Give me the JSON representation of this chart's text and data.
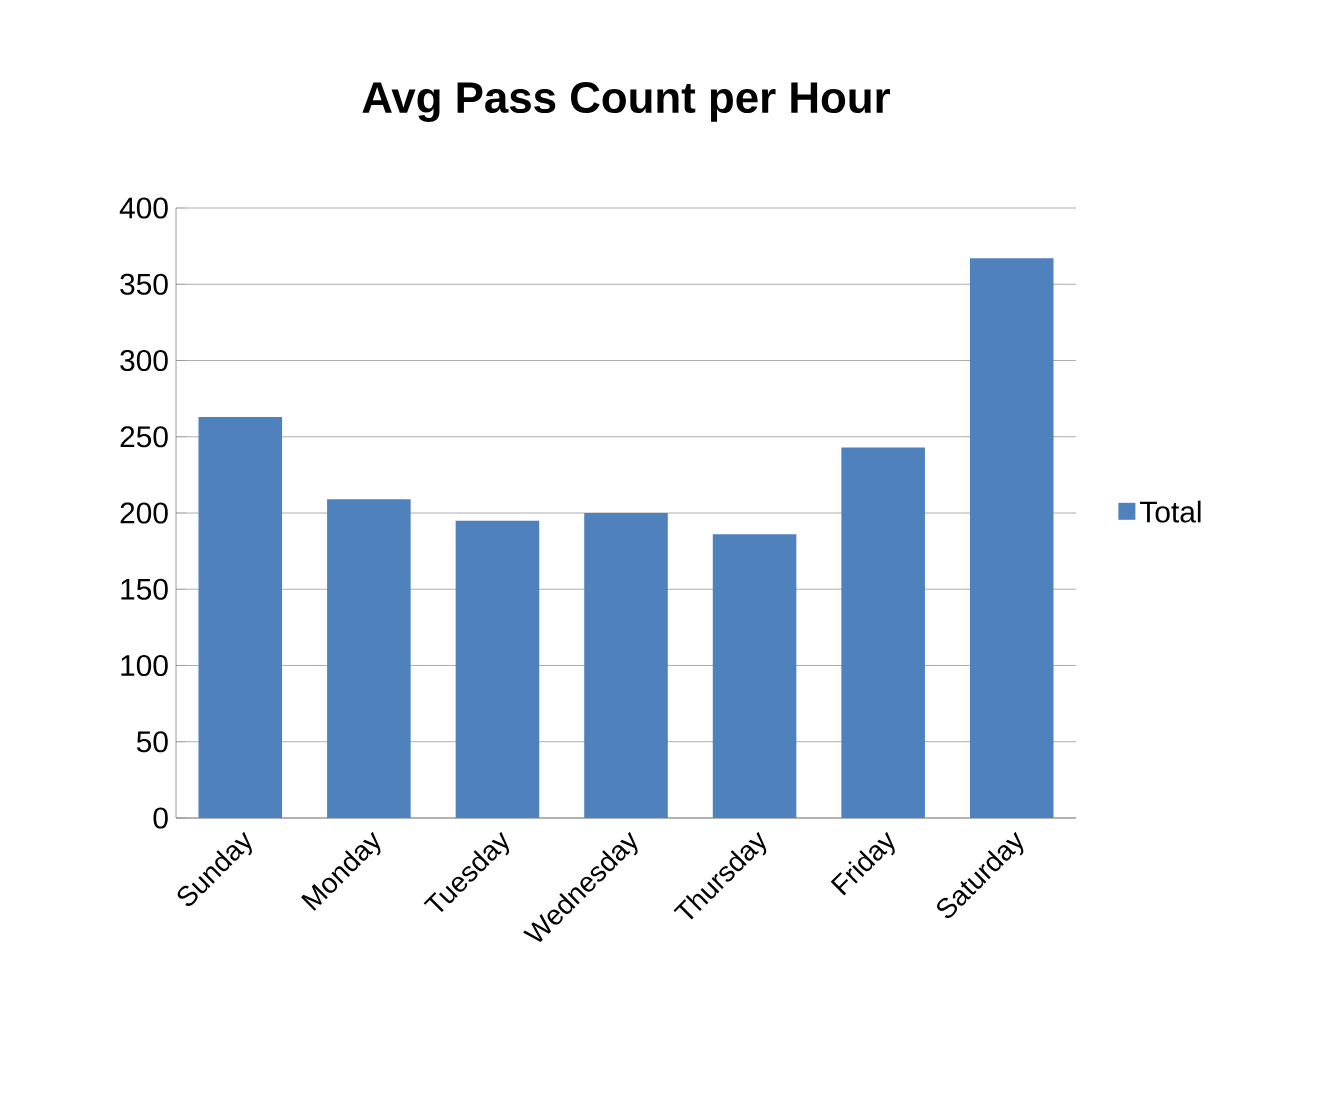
{
  "chart_data": {
    "type": "bar",
    "title": "Avg Pass Count per Hour",
    "categories": [
      "Sunday",
      "Monday",
      "Tuesday",
      "Wednesday",
      "Thursday",
      "Friday",
      "Saturday"
    ],
    "series": [
      {
        "name": "Total",
        "color": "#4f81bd",
        "values": [
          263,
          209,
          195,
          200,
          186,
          243,
          367
        ]
      }
    ],
    "ylim": [
      0,
      400
    ],
    "yticks": [
      0,
      50,
      100,
      150,
      200,
      250,
      300,
      350,
      400
    ],
    "grid": "y",
    "legend": "right"
  }
}
